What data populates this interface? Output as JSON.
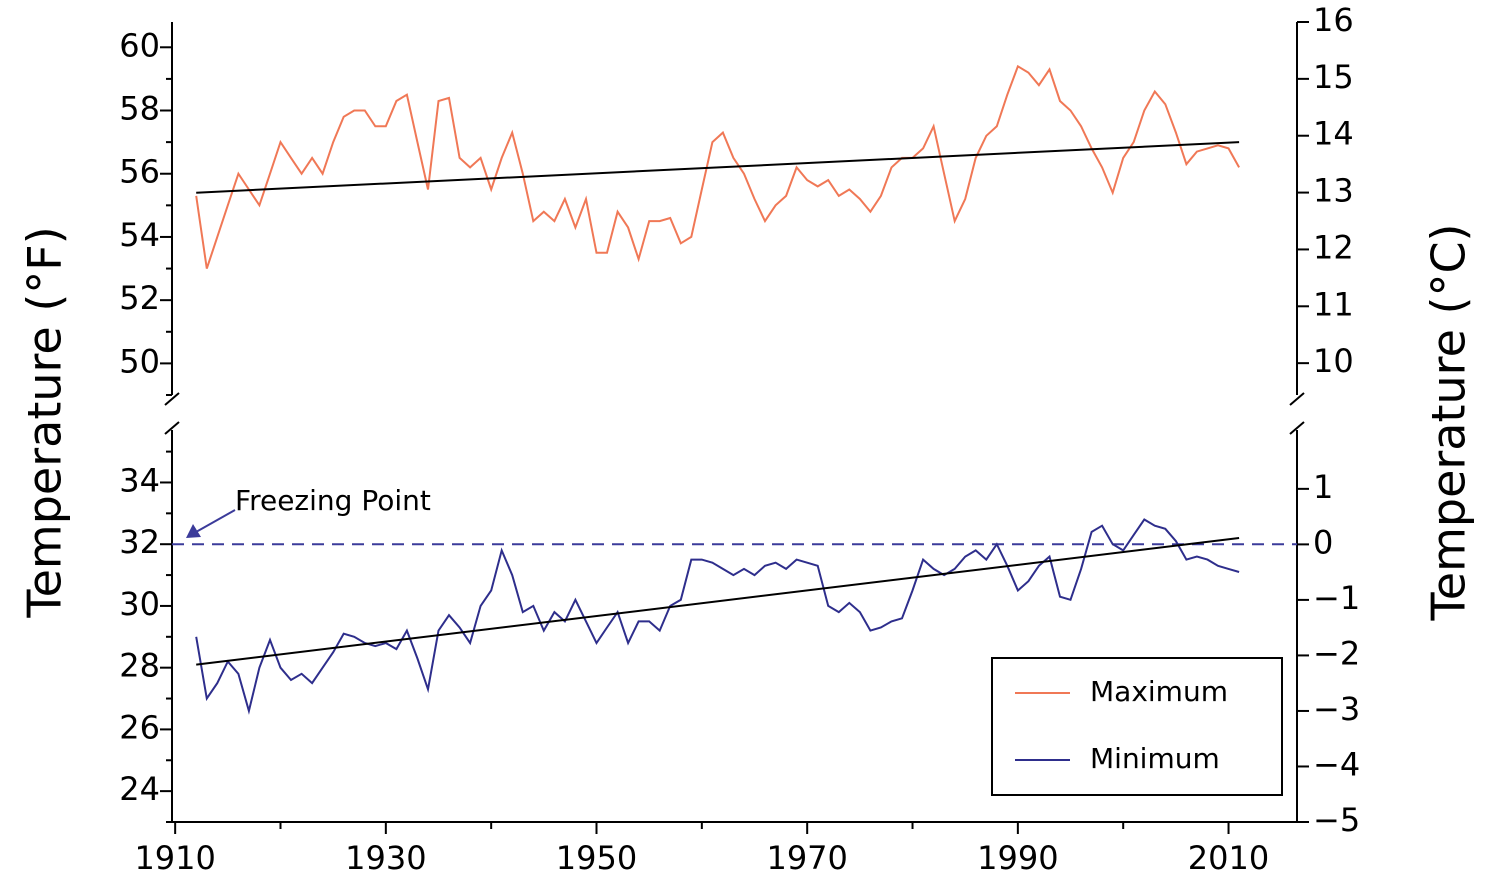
{
  "chart_data": {
    "type": "line",
    "ylabel": "Temperature (°F)",
    "y2label": "Temperature (°C)",
    "xlim": [
      1909.7,
      2016.5
    ],
    "xticks": [
      1910,
      1930,
      1950,
      1970,
      1990,
      2010
    ],
    "xticks_minor": [
      1920,
      1940,
      1960,
      1980,
      2000
    ],
    "panels": [
      {
        "ylim": [
          49,
          60.8
        ],
        "yticks": [
          50,
          52,
          54,
          56,
          58,
          60
        ],
        "yticks_minor": [
          49,
          51,
          53,
          55,
          57,
          59
        ],
        "y2lim": [
          9.44,
          16
        ],
        "y2ticks": [
          10,
          11,
          12,
          13,
          14,
          15,
          16
        ]
      },
      {
        "ylim": [
          23,
          35.7
        ],
        "yticks": [
          24,
          26,
          28,
          30,
          32,
          34
        ],
        "yticks_minor": [
          23,
          25,
          27,
          29,
          31,
          33,
          35
        ],
        "y2lim": [
          -5,
          2.06
        ],
        "y2ticks": [
          {
            "value": -5,
            "label": "−5"
          },
          {
            "value": -4,
            "label": "−4"
          },
          {
            "value": -3,
            "label": "−3"
          },
          {
            "value": -2,
            "label": "−2"
          },
          {
            "value": -1,
            "label": "−1"
          },
          0,
          1
        ]
      }
    ],
    "x": [
      1912,
      1913,
      1914,
      1915,
      1916,
      1917,
      1918,
      1919,
      1920,
      1921,
      1922,
      1923,
      1924,
      1925,
      1926,
      1927,
      1928,
      1929,
      1930,
      1931,
      1932,
      1933,
      1934,
      1935,
      1936,
      1937,
      1938,
      1939,
      1940,
      1941,
      1942,
      1943,
      1944,
      1945,
      1946,
      1947,
      1948,
      1949,
      1950,
      1951,
      1952,
      1953,
      1954,
      1955,
      1956,
      1957,
      1958,
      1959,
      1960,
      1961,
      1962,
      1963,
      1964,
      1965,
      1966,
      1967,
      1968,
      1969,
      1970,
      1971,
      1972,
      1973,
      1974,
      1975,
      1976,
      1977,
      1978,
      1979,
      1980,
      1981,
      1982,
      1983,
      1984,
      1985,
      1986,
      1987,
      1988,
      1989,
      1990,
      1991,
      1992,
      1993,
      1994,
      1995,
      1996,
      1997,
      1998,
      1999,
      2000,
      2001,
      2002,
      2003,
      2004,
      2005,
      2006,
      2007,
      2008,
      2009,
      2010,
      2011
    ],
    "series": [
      {
        "name": "Maximum",
        "color": "#f07856",
        "panel": 0,
        "values": [
          55.3,
          53,
          54,
          55,
          56,
          55.5,
          55,
          56,
          57,
          56.5,
          56,
          56.5,
          56,
          57,
          57.8,
          58,
          58,
          57.5,
          57.5,
          58.3,
          58.5,
          57,
          55.5,
          58.3,
          58.4,
          56.5,
          56.2,
          56.5,
          55.5,
          56.5,
          57.3,
          56,
          54.5,
          54.8,
          54.5,
          55.2,
          54.3,
          55.2,
          53.5,
          53.5,
          54.8,
          54.3,
          53.3,
          54.5,
          54.5,
          54.6,
          53.8,
          54,
          55.5,
          57,
          57.3,
          56.5,
          56,
          55.2,
          54.5,
          55,
          55.3,
          56.2,
          55.8,
          55.6,
          55.8,
          55.3,
          55.5,
          55.2,
          54.8,
          55.3,
          56.2,
          56.5,
          56.5,
          56.8,
          57.5,
          56,
          54.5,
          55.2,
          56.5,
          57.2,
          57.5,
          58.5,
          59.4,
          59.2,
          58.8,
          59.3,
          58.3,
          58,
          57.5,
          56.8,
          56.2,
          55.4,
          56.5,
          57,
          58,
          58.6,
          58.2,
          57.3,
          56.3,
          56.7,
          56.8,
          56.9,
          56.8,
          56.2
        ],
        "trend": {
          "x": [
            1912,
            2011
          ],
          "values": [
            55.4,
            57.0
          ]
        }
      },
      {
        "name": "Minimum",
        "color": "#2e2e8c",
        "panel": 1,
        "values": [
          29,
          27,
          27.5,
          28.2,
          27.8,
          26.6,
          28,
          28.9,
          28,
          27.6,
          27.8,
          27.5,
          28,
          28.5,
          29.1,
          29,
          28.8,
          28.7,
          28.8,
          28.6,
          29.2,
          28.3,
          27.3,
          29.2,
          29.7,
          29.3,
          28.8,
          30,
          30.5,
          31.8,
          31,
          29.8,
          30,
          29.2,
          29.8,
          29.5,
          30.2,
          29.5,
          28.8,
          29.3,
          29.8,
          28.8,
          29.5,
          29.5,
          29.2,
          30,
          30.2,
          31.5,
          31.5,
          31.4,
          31.2,
          31,
          31.2,
          31,
          31.3,
          31.4,
          31.2,
          31.5,
          31.4,
          31.3,
          30,
          29.8,
          30.1,
          29.8,
          29.2,
          29.3,
          29.5,
          29.6,
          30.5,
          31.5,
          31.2,
          31,
          31.2,
          31.6,
          31.8,
          31.5,
          32,
          31.3,
          30.5,
          30.8,
          31.3,
          31.6,
          30.3,
          30.2,
          31.2,
          32.4,
          32.6,
          32,
          31.8,
          32.3,
          32.8,
          32.6,
          32.5,
          32.1,
          31.5,
          31.6,
          31.5,
          31.3,
          31.2,
          31.1
        ],
        "trend": {
          "x": [
            1912,
            2011
          ],
          "values": [
            28.1,
            32.2
          ]
        }
      }
    ],
    "reference_lines": [
      {
        "value": 32,
        "label": "Freezing Point",
        "panel": 1,
        "color": "#3b3b9a"
      }
    ]
  }
}
